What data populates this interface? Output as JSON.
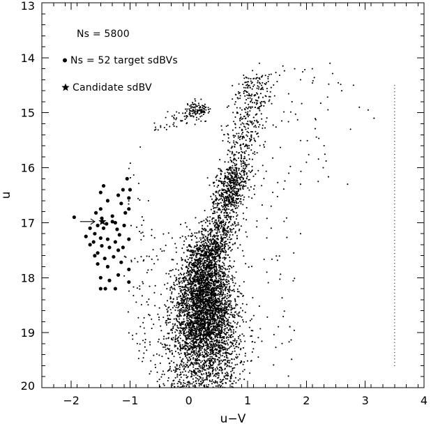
{
  "chart_data": {
    "type": "scatter",
    "xlabel": "u−V",
    "ylabel": "u",
    "xlim": [
      -2.5,
      4.0
    ],
    "ylim": [
      20.0,
      13.0
    ],
    "y_inverted": true,
    "x_ticks": [
      -2,
      -1,
      0,
      1,
      2,
      3,
      4
    ],
    "x_tick_labels": [
      "−2",
      "−1",
      "0",
      "1",
      "2",
      "3",
      "4"
    ],
    "y_ticks": [
      13,
      14,
      15,
      16,
      17,
      18,
      19,
      20
    ],
    "y_tick_labels": [
      "13",
      "14",
      "15",
      "16",
      "17",
      "18",
      "19",
      "20"
    ],
    "x_minor_step": 0.2,
    "y_minor_step": 0.2,
    "grid": false,
    "legend": {
      "placement": "top-left",
      "items": [
        {
          "label": "Ns = 5800",
          "marker": "none"
        },
        {
          "label": "Ns = 52 target sdBVs",
          "marker": "filled-circle"
        },
        {
          "label": "Candidate sdBV",
          "marker": "star"
        }
      ]
    },
    "series": [
      {
        "label": "Ns = 5800",
        "marker": "small-dot",
        "count": 5800,
        "distribution_note": "main sequence clump centered near u-V 0.3, u 18.5 with extension to red giant branch near u-V 1.0 to 3.2, u 14.1 to 16.3, and a clump near u-V 0.2, u 15",
        "main_sequence": {
          "x_center": 0.28,
          "x_sd": 0.22,
          "y_min": 16.2,
          "y_max": 20.0,
          "y_peak": 18.6
        },
        "giant_branch": {
          "x_range": [
            0.6,
            1.6
          ],
          "y_range": [
            14.2,
            17.0
          ]
        },
        "red_clump": {
          "x_range": [
            -0.1,
            0.35
          ],
          "y_range": [
            14.7,
            15.2
          ]
        },
        "bright_red_giants": [
          [
            1.2,
            14.1
          ],
          [
            1.4,
            14.3
          ],
          [
            1.6,
            14.15
          ],
          [
            1.8,
            14.2
          ],
          [
            1.9,
            14.4
          ],
          [
            2.1,
            14.2
          ],
          [
            2.4,
            14.1
          ],
          [
            2.6,
            14.6
          ],
          [
            2.8,
            14.5
          ],
          [
            2.9,
            14.9
          ],
          [
            3.05,
            14.95
          ],
          [
            3.15,
            15.1
          ],
          [
            2.75,
            15.3
          ],
          [
            2.3,
            15.6
          ],
          [
            2.0,
            15.9
          ],
          [
            1.7,
            16.1
          ],
          [
            1.9,
            16.3
          ],
          [
            2.2,
            16.25
          ],
          [
            2.7,
            16.3
          ],
          [
            1.4,
            16.7
          ],
          [
            1.9,
            17.2
          ]
        ]
      },
      {
        "label": "Ns = 52 target sdBVs",
        "marker": "filled-circle",
        "count": 52,
        "points": [
          [
            -1.05,
            16.2
          ],
          [
            -1.12,
            16.4
          ],
          [
            -1.0,
            16.4
          ],
          [
            -1.02,
            16.55
          ],
          [
            -1.2,
            16.5
          ],
          [
            -1.02,
            16.75
          ],
          [
            -1.08,
            16.82
          ],
          [
            -1.45,
            16.33
          ],
          [
            -1.38,
            16.6
          ],
          [
            -1.5,
            16.75
          ],
          [
            -1.58,
            16.82
          ],
          [
            -1.3,
            16.88
          ],
          [
            -1.48,
            16.92
          ],
          [
            -1.25,
            17.0
          ],
          [
            -1.4,
            17.02
          ],
          [
            -1.55,
            17.05
          ],
          [
            -1.95,
            16.9
          ],
          [
            -1.45,
            17.1
          ],
          [
            -1.22,
            17.12
          ],
          [
            -1.18,
            17.22
          ],
          [
            -1.02,
            17.3
          ],
          [
            -1.6,
            17.2
          ],
          [
            -1.5,
            17.28
          ],
          [
            -1.38,
            17.3
          ],
          [
            -1.25,
            17.35
          ],
          [
            -1.68,
            17.4
          ],
          [
            -1.48,
            17.42
          ],
          [
            -1.35,
            17.45
          ],
          [
            -1.2,
            17.5
          ],
          [
            -1.55,
            17.55
          ],
          [
            -1.28,
            17.62
          ],
          [
            -1.43,
            17.65
          ],
          [
            -1.15,
            17.72
          ],
          [
            -1.38,
            17.8
          ],
          [
            -1.55,
            17.75
          ],
          [
            -1.02,
            17.85
          ],
          [
            -1.2,
            17.95
          ],
          [
            -1.5,
            18.0
          ],
          [
            -1.35,
            18.05
          ],
          [
            -1.02,
            18.08
          ],
          [
            -1.5,
            18.2
          ],
          [
            -1.42,
            18.2
          ],
          [
            -1.25,
            18.2
          ],
          [
            -1.62,
            17.35
          ],
          [
            -1.1,
            17.05
          ],
          [
            -1.75,
            17.25
          ],
          [
            -1.3,
            16.98
          ],
          [
            -1.15,
            16.65
          ],
          [
            -1.68,
            17.1
          ],
          [
            -1.12,
            17.45
          ],
          [
            -1.5,
            16.45
          ],
          [
            -1.6,
            17.6
          ]
        ]
      },
      {
        "label": "Candidate sdBV",
        "marker": "star",
        "count": 1,
        "points": [
          [
            -1.47,
            16.98
          ]
        ]
      }
    ],
    "annotations": [
      {
        "type": "arrow",
        "from": [
          -1.85,
          16.98
        ],
        "to": [
          -1.6,
          16.98
        ]
      }
    ],
    "reference_line": {
      "type": "dotted-vertical",
      "x": 3.5,
      "y_range": [
        14.5,
        19.6
      ]
    }
  }
}
